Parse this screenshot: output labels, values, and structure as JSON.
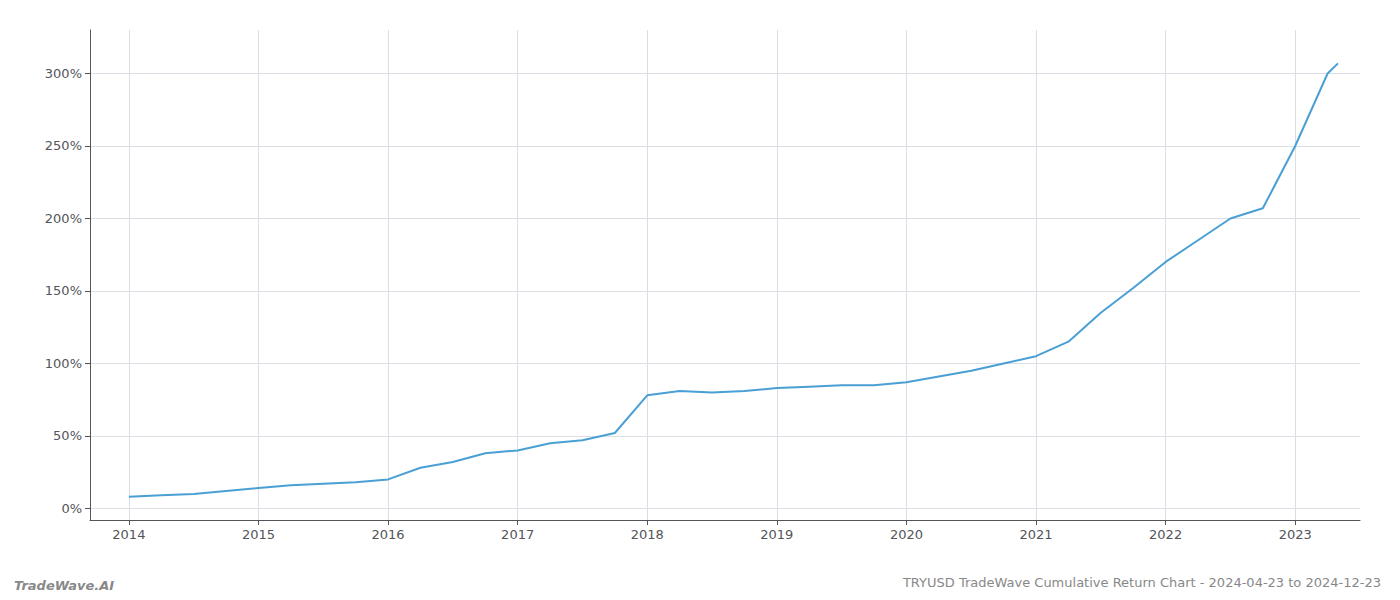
{
  "chart_data": {
    "type": "line",
    "title": "TRYUSD TradeWave Cumulative Return Chart - 2024-04-23 to 2024-12-23",
    "annotations": [
      "TradeWave.AI"
    ],
    "x": [
      2014.0,
      2014.25,
      2014.5,
      2014.75,
      2015.0,
      2015.25,
      2015.5,
      2015.75,
      2016.0,
      2016.25,
      2016.5,
      2016.75,
      2017.0,
      2017.25,
      2017.5,
      2017.75,
      2018.0,
      2018.25,
      2018.5,
      2018.75,
      2019.0,
      2019.25,
      2019.5,
      2019.75,
      2020.0,
      2020.25,
      2020.5,
      2020.75,
      2021.0,
      2021.25,
      2021.5,
      2021.75,
      2022.0,
      2022.25,
      2022.5,
      2022.75,
      2023.0,
      2023.25,
      2023.33
    ],
    "values": [
      8,
      9,
      10,
      12,
      14,
      16,
      17,
      18,
      20,
      28,
      32,
      38,
      40,
      45,
      47,
      52,
      78,
      81,
      80,
      81,
      83,
      84,
      85,
      85,
      87,
      91,
      95,
      100,
      105,
      115,
      135,
      152,
      170,
      185,
      200,
      207,
      250,
      300,
      307
    ],
    "color": "#4a9fd4",
    "xlim": [
      2013.7,
      2023.5
    ],
    "xticks": [
      2014,
      2015,
      2016,
      2017,
      2018,
      2019,
      2020,
      2021,
      2022,
      2023
    ],
    "ylim": [
      -8,
      330
    ],
    "yticks": [
      {
        "value": 0,
        "label": "0%"
      },
      {
        "value": 50,
        "label": "50%"
      },
      {
        "value": 100,
        "label": "100%"
      },
      {
        "value": 150,
        "label": "150%"
      },
      {
        "value": 200,
        "label": "200%"
      },
      {
        "value": 250,
        "label": "250%"
      },
      {
        "value": 300,
        "label": "300%"
      }
    ],
    "grid": true
  }
}
